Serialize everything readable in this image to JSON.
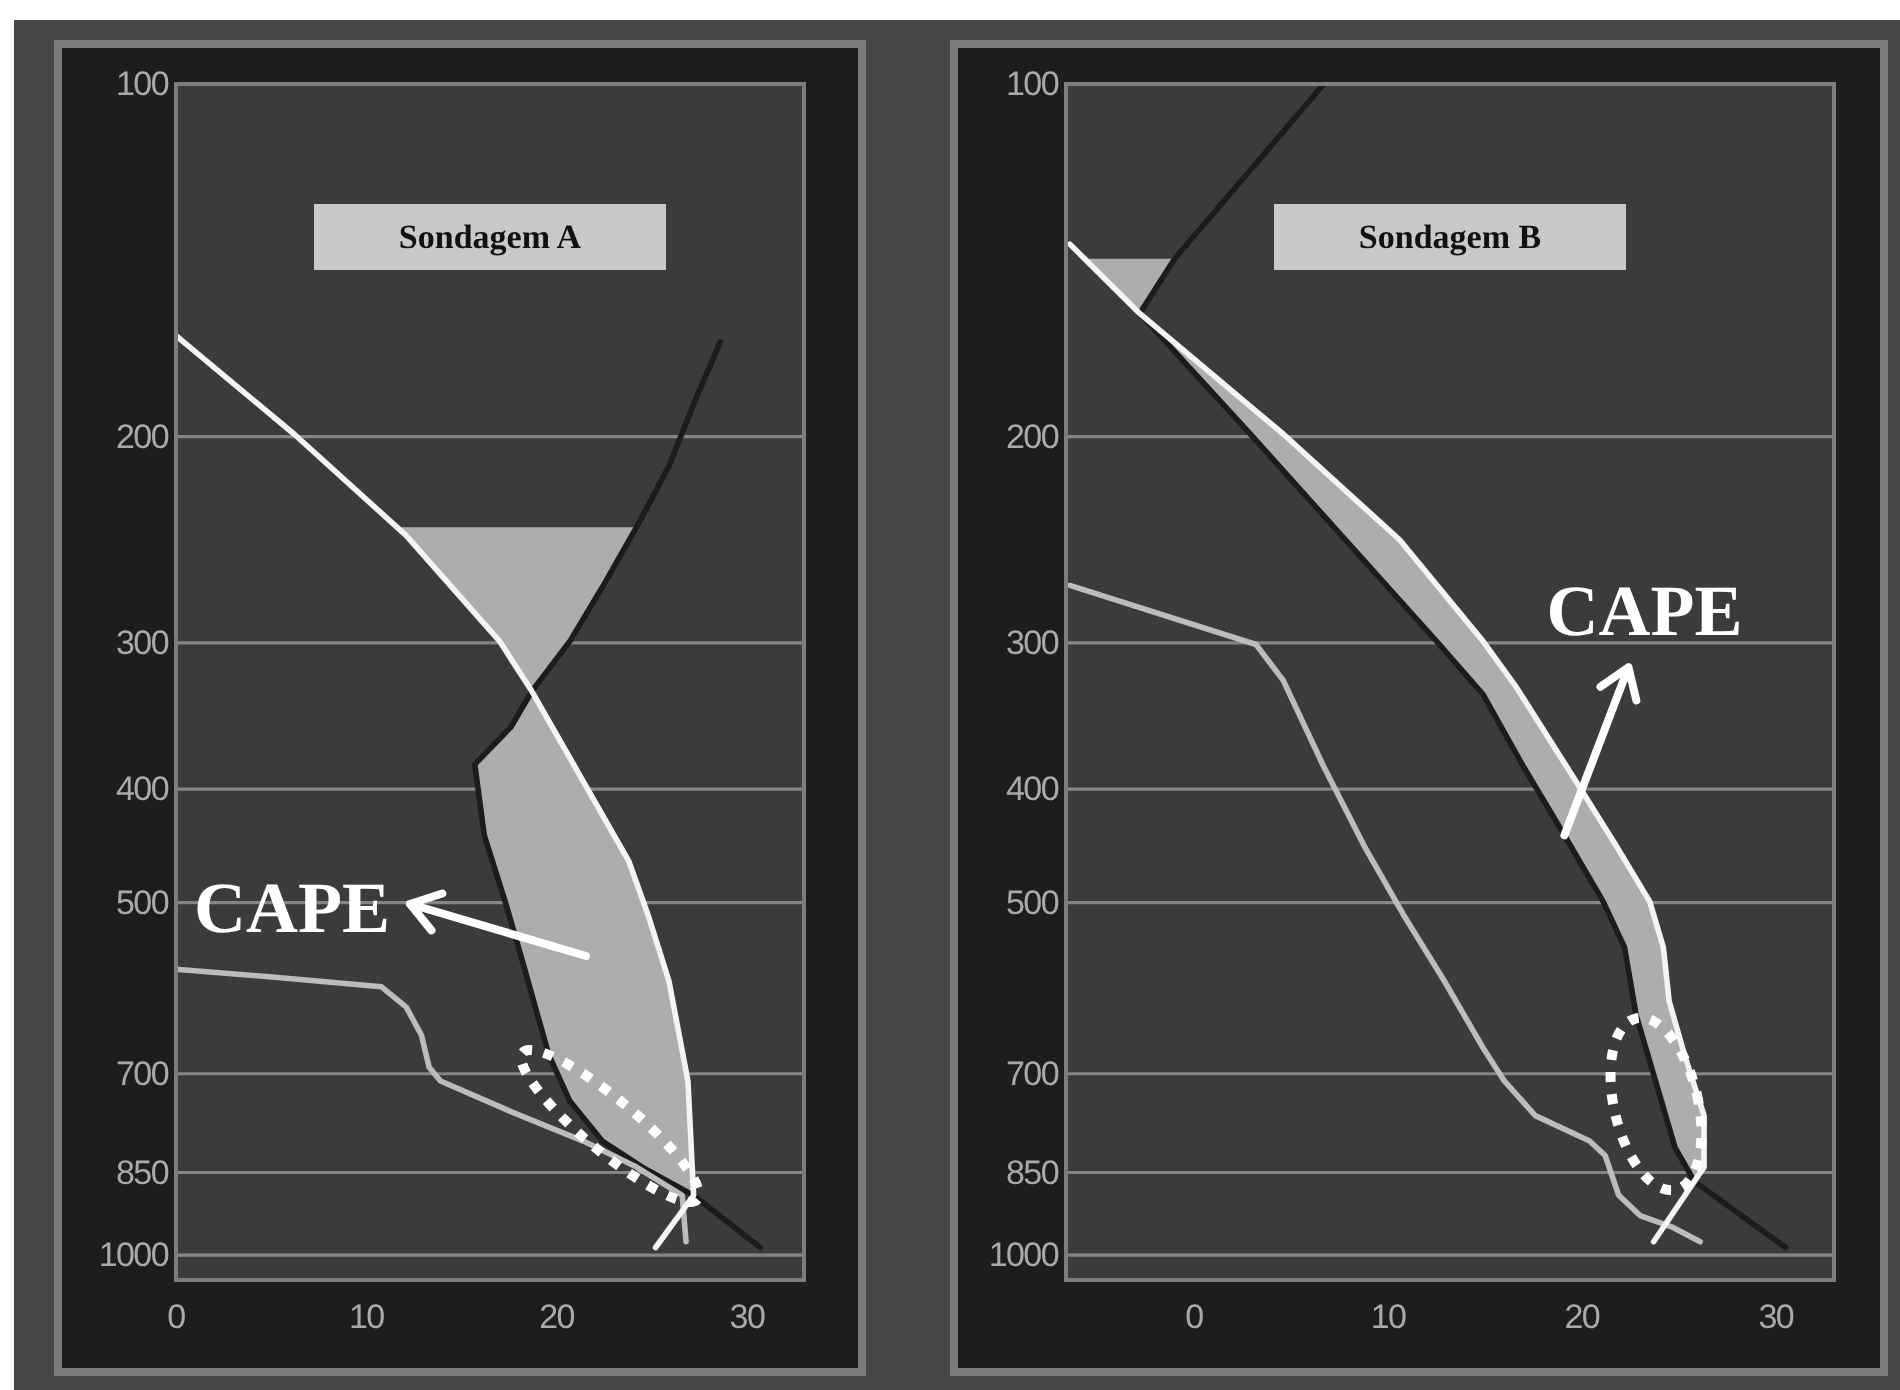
{
  "chart_data": [
    {
      "type": "line",
      "title": "Sondagem A",
      "xlim": [
        0,
        33
      ],
      "ylim": [
        1050,
        100
      ],
      "xticks": [
        0,
        10,
        20,
        30
      ],
      "yticks": [
        100,
        200,
        300,
        400,
        500,
        700,
        850,
        1000
      ],
      "log": "y",
      "grid": "y",
      "annotations": [
        "CAPE"
      ],
      "series": [
        {
          "type": "area",
          "color": "#adadad",
          "x": [
            18.7,
            21.4,
            23.8,
            24.8,
            25.9,
            26.9,
            27.2,
            24.5,
            22.4,
            20.7,
            19.6,
            19.0,
            18.3,
            17.3,
            16.2,
            15.7,
            17.6,
            18.7,
            null,
            11.6,
            24.2,
            22.4,
            20.7,
            18.7,
            17.0,
            11.6
          ],
          "values": [
            330,
            394,
            461,
            512,
            583,
            710,
            889,
            841,
            799,
            739,
            675,
            624,
            568,
            499,
            438,
            381,
            354,
            330,
            null,
            239,
            239,
            269,
            299,
            330,
            299,
            239
          ]
        },
        {
          "color": "#1c1c1c",
          "x": [
            28.6,
            27.3,
            25.9,
            24.2,
            22.4,
            20.7,
            18.7,
            17.6,
            15.7,
            16.2,
            17.3,
            18.3,
            19.0,
            19.6,
            20.7,
            22.4,
            24.5,
            27.2,
            30.7
          ],
          "values": [
            166,
            186,
            212,
            239,
            269,
            299,
            330,
            354,
            381,
            438,
            499,
            568,
            624,
            675,
            739,
            799,
            841,
            889,
            985
          ]
        },
        {
          "color": "#bcbcbc",
          "x": [
            0,
            5.2,
            10.8,
            12.1,
            12.9,
            13.3,
            13.9,
            17.6,
            21.4,
            24.2,
            26.6,
            26.8
          ],
          "values": [
            570,
            579,
            590,
            614,
            649,
            691,
            710,
            754,
            799,
            841,
            889,
            974
          ]
        },
        {
          "color": "#f4f4f4",
          "x": [
            0,
            6.2,
            12.1,
            17.0,
            18.7,
            21.4,
            23.8,
            24.8,
            25.9,
            26.9,
            27.2,
            25.2
          ],
          "values": [
            164,
            199,
            243,
            299,
            330,
            394,
            461,
            512,
            583,
            710,
            889,
            985
          ]
        }
      ]
    },
    {
      "type": "line",
      "title": "Sondagem B",
      "xlim": [
        -6.6,
        33
      ],
      "ylim": [
        1050,
        100
      ],
      "xticks": [
        0,
        10,
        20,
        30
      ],
      "yticks": [
        100,
        200,
        300,
        400,
        500,
        700,
        850,
        1000
      ],
      "log": "y",
      "grid": "y",
      "annotations": [
        {
          "text": "CAPE",
          "x": 19.1,
          "y": 438
        }
      ],
      "series": [
        {
          "type": "area",
          "color": "#adadad",
          "x": [
            -5.7,
            -1.0,
            -2.8,
            -5.7,
            null,
            -2.8,
            4.6,
            10.6,
            14.9,
            16.6,
            19.7,
            21.8,
            23.5,
            24.2,
            24.5,
            25.3,
            26.3,
            26.3,
            25.8,
            24.8,
            23.8,
            22.8,
            22.2,
            21.1,
            19.1,
            17.0,
            14.9,
            12.5,
            2.9,
            -2.8
          ],
          "values": [
            141,
            141,
            157,
            141,
            null,
            157,
            199,
            245,
            299,
            327,
            394,
            448,
            499,
            546,
            607,
            675,
            760,
            841,
            865,
            809,
            710,
            624,
            546,
            499,
            438,
            383,
            332,
            299,
            199,
            157
          ]
        },
        {
          "color": "#1c1c1c",
          "x": [
            6.7,
            -1.0,
            -2.8,
            2.9,
            12.5,
            14.9,
            17.0,
            19.1,
            21.1,
            22.2,
            22.8,
            23.8,
            24.8,
            25.8,
            30.5
          ],
          "values": [
            100,
            141,
            157,
            199,
            299,
            332,
            383,
            438,
            499,
            546,
            624,
            710,
            809,
            865,
            985
          ]
        },
        {
          "color": "#bcbcbc",
          "x": [
            -6.4,
            3.2,
            4.6,
            6.7,
            8.8,
            10.8,
            12.9,
            14.9,
            16.0,
            17.6,
            20.4,
            21.2,
            21.9,
            23.0,
            24.7,
            26.1
          ],
          "values": [
            268,
            301,
            323,
            383,
            448,
            512,
            583,
            665,
            710,
            760,
            799,
            822,
            889,
            925,
            947,
            974
          ]
        },
        {
          "color": "#f4f4f4",
          "x": [
            -6.4,
            -2.8,
            4.6,
            10.6,
            14.9,
            16.6,
            19.7,
            21.8,
            23.5,
            24.2,
            24.5,
            25.3,
            26.3,
            26.3,
            25.8,
            23.7
          ],
          "values": [
            137,
            157,
            199,
            245,
            299,
            327,
            394,
            448,
            499,
            546,
            607,
            675,
            760,
            841,
            865,
            974
          ]
        }
      ]
    }
  ]
}
